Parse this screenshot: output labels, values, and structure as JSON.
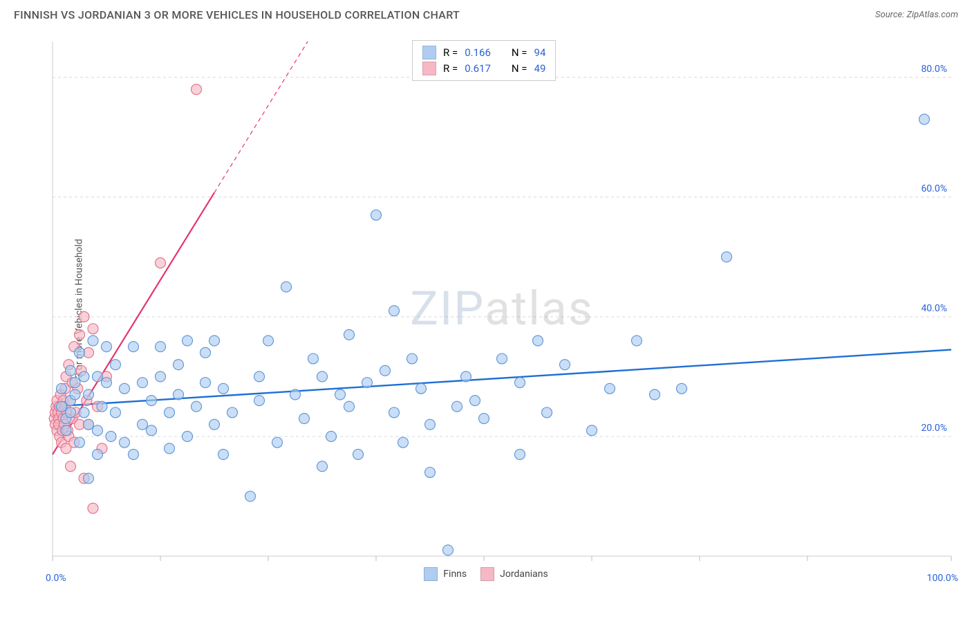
{
  "title": "FINNISH VS JORDANIAN 3 OR MORE VEHICLES IN HOUSEHOLD CORRELATION CHART",
  "source_prefix": "Source: ",
  "source_name": "ZipAtlas.com",
  "ylabel": "3 or more Vehicles in Household",
  "watermark": {
    "part1": "ZIP",
    "part2": "atlas"
  },
  "chart": {
    "type": "scatter",
    "xlim": [
      0,
      100
    ],
    "ylim": [
      0,
      86
    ],
    "x_axis_label_left": "0.0%",
    "x_axis_label_right": "100.0%",
    "x_ticks": [
      0,
      12,
      24,
      36,
      48,
      60,
      72,
      84,
      100
    ],
    "y_gridlines": [
      20,
      40,
      60,
      80
    ],
    "y_gridline_labels": [
      "20.0%",
      "40.0%",
      "60.0%",
      "80.0%"
    ],
    "axis_label_color": "#2962d9",
    "grid_color": "#d8d8d8",
    "axis_color": "#cccccc",
    "tick_color": "#bbbbbb",
    "background_color": "#ffffff",
    "marker_radius": 7.5,
    "marker_stroke_width": 1.1,
    "series": {
      "finns": {
        "label": "Finns",
        "fill": "#aecdf0",
        "stroke": "#5a93d6",
        "fill_opacity": 0.65,
        "trend": {
          "color": "#1d6fd4",
          "width": 2.4,
          "y_at_x0": 25.0,
          "y_at_x100": 34.5
        },
        "points": [
          [
            1,
            25
          ],
          [
            1,
            28
          ],
          [
            1.5,
            23
          ],
          [
            1.5,
            21
          ],
          [
            2,
            26
          ],
          [
            2,
            31
          ],
          [
            2,
            24
          ],
          [
            2.5,
            29
          ],
          [
            2.5,
            27
          ],
          [
            3,
            19
          ],
          [
            3,
            34
          ],
          [
            3.5,
            24
          ],
          [
            3.5,
            30
          ],
          [
            4,
            22
          ],
          [
            4,
            27
          ],
          [
            4,
            13
          ],
          [
            4.5,
            36
          ],
          [
            5,
            21
          ],
          [
            5,
            30
          ],
          [
            5,
            17
          ],
          [
            5.5,
            25
          ],
          [
            6,
            29
          ],
          [
            6,
            35
          ],
          [
            6.5,
            20
          ],
          [
            7,
            24
          ],
          [
            7,
            32
          ],
          [
            8,
            19
          ],
          [
            8,
            28
          ],
          [
            9,
            17
          ],
          [
            9,
            35
          ],
          [
            10,
            22
          ],
          [
            10,
            29
          ],
          [
            11,
            26
          ],
          [
            11,
            21
          ],
          [
            12,
            30
          ],
          [
            12,
            35
          ],
          [
            13,
            18
          ],
          [
            13,
            24
          ],
          [
            14,
            27
          ],
          [
            14,
            32
          ],
          [
            15,
            20
          ],
          [
            15,
            36
          ],
          [
            16,
            25
          ],
          [
            17,
            29
          ],
          [
            17,
            34
          ],
          [
            18,
            22
          ],
          [
            18,
            36
          ],
          [
            19,
            17
          ],
          [
            19,
            28
          ],
          [
            20,
            24
          ],
          [
            22,
            10
          ],
          [
            23,
            26
          ],
          [
            23,
            30
          ],
          [
            24,
            36
          ],
          [
            25,
            19
          ],
          [
            26,
            45
          ],
          [
            27,
            27
          ],
          [
            28,
            23
          ],
          [
            29,
            33
          ],
          [
            30,
            15
          ],
          [
            30,
            30
          ],
          [
            31,
            20
          ],
          [
            32,
            27
          ],
          [
            33,
            25
          ],
          [
            33,
            37
          ],
          [
            34,
            17
          ],
          [
            35,
            29
          ],
          [
            36,
            57
          ],
          [
            37,
            31
          ],
          [
            38,
            41
          ],
          [
            38,
            24
          ],
          [
            39,
            19
          ],
          [
            40,
            33
          ],
          [
            41,
            28
          ],
          [
            42,
            22
          ],
          [
            42,
            14
          ],
          [
            44,
            1
          ],
          [
            45,
            25
          ],
          [
            46,
            30
          ],
          [
            47,
            26
          ],
          [
            48,
            23
          ],
          [
            50,
            33
          ],
          [
            52,
            17
          ],
          [
            52,
            29
          ],
          [
            54,
            36
          ],
          [
            55,
            24
          ],
          [
            57,
            32
          ],
          [
            60,
            21
          ],
          [
            62,
            28
          ],
          [
            65,
            36
          ],
          [
            67,
            27
          ],
          [
            70,
            28
          ],
          [
            75,
            50
          ],
          [
            97,
            73
          ]
        ]
      },
      "jordanians": {
        "label": "Jordanians",
        "fill": "#f6b8c4",
        "stroke": "#e16d87",
        "fill_opacity": 0.65,
        "trend": {
          "color": "#e4356a",
          "width": 2.2,
          "y_at_x0": 17.0,
          "slope": 2.43,
          "dash_after_x": 18
        },
        "points": [
          [
            0.2,
            23
          ],
          [
            0.3,
            24
          ],
          [
            0.3,
            22
          ],
          [
            0.4,
            25
          ],
          [
            0.5,
            21
          ],
          [
            0.5,
            26
          ],
          [
            0.6,
            24
          ],
          [
            0.7,
            23
          ],
          [
            0.7,
            22
          ],
          [
            0.8,
            25
          ],
          [
            0.8,
            20
          ],
          [
            0.9,
            27
          ],
          [
            1.0,
            24
          ],
          [
            1.0,
            19
          ],
          [
            1.1,
            21
          ],
          [
            1.2,
            26
          ],
          [
            1.2,
            23
          ],
          [
            1.3,
            22
          ],
          [
            1.4,
            28
          ],
          [
            1.4,
            25
          ],
          [
            1.5,
            18
          ],
          [
            1.5,
            30
          ],
          [
            1.6,
            24
          ],
          [
            1.7,
            21
          ],
          [
            1.8,
            32
          ],
          [
            1.8,
            20
          ],
          [
            2.0,
            26
          ],
          [
            2.0,
            15
          ],
          [
            2.2,
            29
          ],
          [
            2.2,
            23
          ],
          [
            2.4,
            35
          ],
          [
            2.4,
            19
          ],
          [
            2.6,
            24
          ],
          [
            2.8,
            28
          ],
          [
            3.0,
            37
          ],
          [
            3.0,
            22
          ],
          [
            3.2,
            31
          ],
          [
            3.5,
            13
          ],
          [
            3.5,
            40
          ],
          [
            3.8,
            26
          ],
          [
            4.0,
            22
          ],
          [
            4.0,
            34
          ],
          [
            4.5,
            8
          ],
          [
            4.5,
            38
          ],
          [
            5.0,
            25
          ],
          [
            5.5,
            18
          ],
          [
            6.0,
            30
          ],
          [
            16,
            78
          ],
          [
            12,
            49
          ]
        ]
      }
    }
  },
  "stats_box": {
    "rows": [
      {
        "swatch": "#aecdf0",
        "r_label": "R =",
        "r_value": "0.166",
        "n_label": "N =",
        "n_value": "94"
      },
      {
        "swatch": "#f6b8c4",
        "r_label": "R =",
        "r_value": "0.617",
        "n_label": "N =",
        "n_value": "49"
      }
    ]
  },
  "bottom_legend": [
    {
      "swatch": "#aecdf0",
      "label": "Finns"
    },
    {
      "swatch": "#f6b8c4",
      "label": "Jordanians"
    }
  ]
}
